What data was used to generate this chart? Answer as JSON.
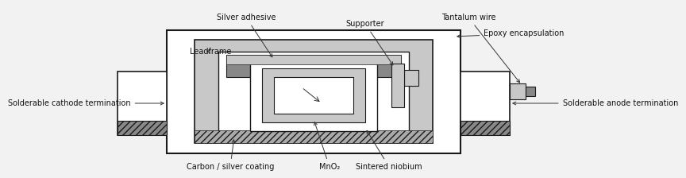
{
  "bg_color": "#ffffff",
  "labels": {
    "tantalum_wire": "Tantalum wire",
    "silver_adhesive": "Silver adhesive",
    "supporter": "Supporter",
    "epoxy_encapsulation": "Epoxy encapsulation",
    "leadframe": "Leadframe",
    "solderable_cathode": "Solderable cathode termination",
    "solderable_anode": "Solderable anode termination",
    "carbon_silver": "Carbon / silver coating",
    "mno2": "MnO₂",
    "sintered_niobium": "Sintered niobium"
  },
  "font_size": 7.0,
  "colors": {
    "white": "#ffffff",
    "lt_gray": "#c8c8c8",
    "gray": "#888888",
    "dk_gray": "#444444",
    "blk": "#1a1a1a",
    "hatch": "#777777",
    "bg": "#f2f2f2"
  }
}
